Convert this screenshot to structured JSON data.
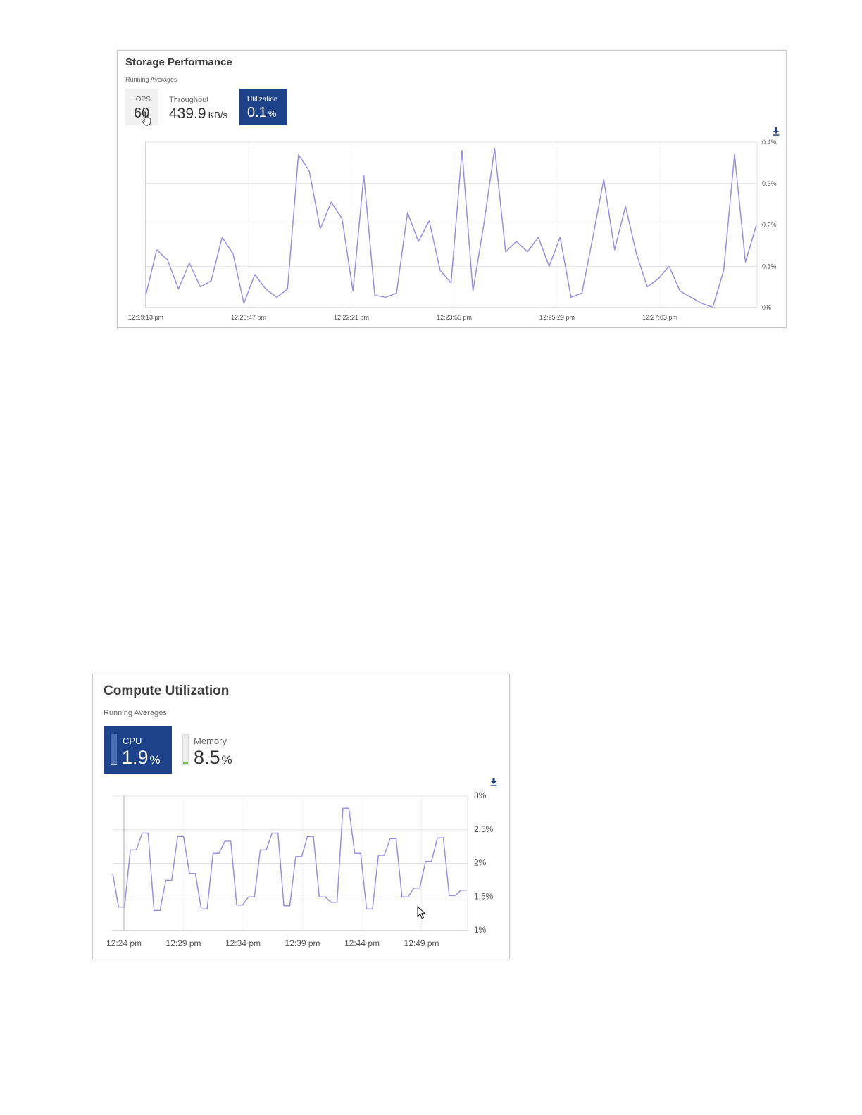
{
  "storage": {
    "title": "Storage Performance",
    "subtitle": "Running Averages",
    "tiles": {
      "iops": {
        "label": "IOPS",
        "value": "60"
      },
      "throughput": {
        "label": "Throughput",
        "value": "439.9",
        "unit": "KB/s"
      },
      "utilization": {
        "label": "Utilization",
        "value": "0.1",
        "unit": "%"
      }
    },
    "download_icon": "download-icon",
    "cursor_icon": "hand-pointer-icon"
  },
  "compute": {
    "title": "Compute Utilization",
    "subtitle": "Running Averages",
    "tiles": {
      "cpu": {
        "label": "CPU",
        "value": "1.9",
        "unit": "%"
      },
      "memory": {
        "label": "Memory",
        "value": "8.5",
        "unit": "%"
      }
    },
    "download_icon": "download-icon",
    "cursor_icon": "arrow-pointer-icon"
  },
  "colors": {
    "accent": "#1d4289",
    "line": "#9b8fe0",
    "memory_bar": "#7bc043"
  },
  "chart_data": [
    {
      "type": "line",
      "ylim": [
        0,
        0.4
      ],
      "y_ticks": [
        "0%",
        "0.1%",
        "0.2%",
        "0.3%",
        "0.4%"
      ],
      "x_ticks": [
        "12:19:13 pm",
        "12:20:47 pm",
        "12:22:21 pm",
        "12:23:55 pm",
        "12:25:29 pm",
        "12:27:03 pm"
      ],
      "grid": true,
      "series": [
        {
          "values": [
            0.03,
            0.14,
            0.115,
            0.045,
            0.108,
            0.05,
            0.065,
            0.17,
            0.13,
            0.01,
            0.08,
            0.045,
            0.025,
            0.045,
            0.37,
            0.33,
            0.19,
            0.255,
            0.215,
            0.04,
            0.32,
            0.03,
            0.025,
            0.035,
            0.23,
            0.16,
            0.21,
            0.09,
            0.06,
            0.38,
            0.04,
            0.2,
            0.385,
            0.135,
            0.16,
            0.135,
            0.17,
            0.1,
            0.17,
            0.025,
            0.035,
            0.17,
            0.31,
            0.14,
            0.245,
            0.13,
            0.05,
            0.07,
            0.1,
            0.04,
            0.025,
            0.01,
            0.001,
            0.09,
            0.37,
            0.11,
            0.2
          ]
        }
      ]
    },
    {
      "type": "line",
      "ylim": [
        1,
        3
      ],
      "y_ticks": [
        "1%",
        "1.5%",
        "2%",
        "2.5%",
        "3%"
      ],
      "x_ticks": [
        "12:24 pm",
        "12:29 pm",
        "12:34 pm",
        "12:39 pm",
        "12:44 pm",
        "12:49 pm"
      ],
      "grid": true,
      "series": [
        {
          "values": [
            1.85,
            1.35,
            1.35,
            2.2,
            2.2,
            2.45,
            2.45,
            1.3,
            1.3,
            1.75,
            1.75,
            2.4,
            2.4,
            1.85,
            1.85,
            1.32,
            1.32,
            2.15,
            2.15,
            2.33,
            2.33,
            1.38,
            1.38,
            1.5,
            1.5,
            2.2,
            2.2,
            2.45,
            2.45,
            1.37,
            1.37,
            2.1,
            2.1,
            2.4,
            2.4,
            1.5,
            1.5,
            1.42,
            1.42,
            2.82,
            2.82,
            2.15,
            2.15,
            1.32,
            1.32,
            2.12,
            2.12,
            2.37,
            2.37,
            1.5,
            1.5,
            1.63,
            1.63,
            2.03,
            2.03,
            2.38,
            2.38,
            1.52,
            1.52,
            1.6,
            1.6
          ]
        }
      ]
    }
  ]
}
